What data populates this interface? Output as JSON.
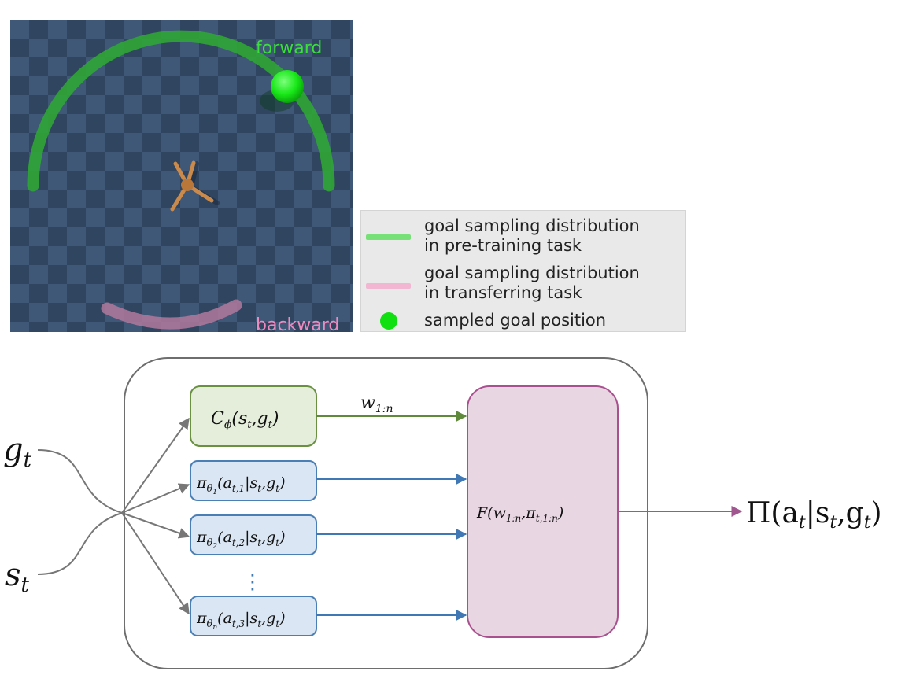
{
  "scene": {
    "forward_label": "forward",
    "backward_label": "backward"
  },
  "legend": {
    "items": [
      {
        "line1": "goal sampling distribution",
        "line2": "in pre-training task",
        "color": "#77e077",
        "marker": "line"
      },
      {
        "line1": "goal sampling distribution",
        "line2": "in transferring task",
        "color": "#f2b6d2",
        "marker": "line"
      },
      {
        "line1": "sampled goal position",
        "line2": "",
        "color": "#10e010",
        "marker": "dot"
      }
    ]
  },
  "diagram": {
    "inputs": {
      "goal": "g",
      "goal_sub": "t",
      "state": "s",
      "state_sub": "t"
    },
    "classifier": {
      "name": "C",
      "sub": "ϕ",
      "args": "(s",
      "args_sub1": "t",
      "args_mid": ",g",
      "args_sub2": "t",
      "args_end": ")"
    },
    "weights": {
      "name": "w",
      "sub": "1:n"
    },
    "policies": [
      {
        "pi": "π",
        "theta": "θ",
        "theta_sub": "1",
        "open": "(a",
        "a_sub": "t,1",
        "mid": "|s",
        "s_sub": "t",
        "g": ",g",
        "g_sub": "t",
        "close": ")"
      },
      {
        "pi": "π",
        "theta": "θ",
        "theta_sub": "2",
        "open": "(a",
        "a_sub": "t,2",
        "mid": "|s",
        "s_sub": "t",
        "g": ",g",
        "g_sub": "t",
        "close": ")"
      },
      {
        "pi": "π",
        "theta": "θ",
        "theta_sub": "n",
        "open": "(a",
        "a_sub": "t,3",
        "mid": "|s",
        "s_sub": "t",
        "g": ",g",
        "g_sub": "t",
        "close": ")"
      }
    ],
    "ellipsis": "⋮",
    "fusion": {
      "name": "F(w",
      "sub1": "1:n",
      "mid": ",π",
      "sub2": "t,1:n",
      "end": ")"
    },
    "output": {
      "name": "Π(a",
      "sub1": "t",
      "mid": "|s",
      "sub2": "t",
      "g": ",g",
      "sub3": "t",
      "end": ")"
    },
    "colors": {
      "classifier_fill": "#e4eedb",
      "classifier_stroke": "#6a9142",
      "policy_fill": "#dae6f3",
      "policy_stroke": "#4a7fb6",
      "fusion_fill": "#e9d6e3",
      "fusion_stroke": "#a9508f",
      "container_stroke": "#6e6e6e"
    }
  }
}
